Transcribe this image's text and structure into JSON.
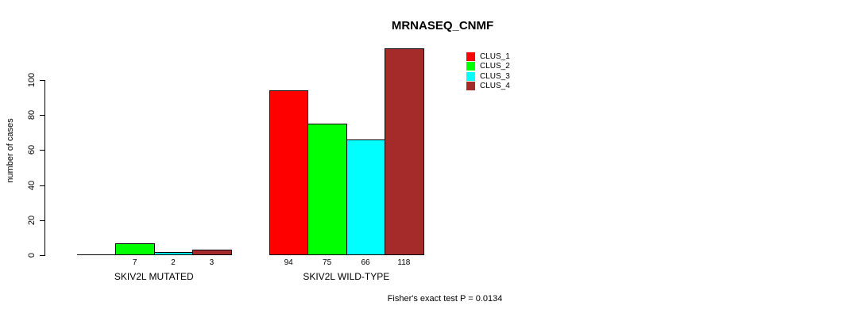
{
  "title": "MRNASEQ_CNMF",
  "footer_annotation": "Fisher's exact test P = 0.0134",
  "chart_data": {
    "type": "bar",
    "title": "MRNASEQ_CNMF",
    "xlabel": "",
    "ylabel": "number of cases",
    "ylim": [
      0,
      120
    ],
    "yticks": [
      0,
      20,
      40,
      60,
      80,
      100
    ],
    "ytick_labels": [
      "0",
      "20",
      "40",
      "60",
      "80",
      "100"
    ],
    "grid": false,
    "legend_position": "top-right",
    "annotation": "Fisher's exact test P = 0.0134",
    "categories": [
      "SKIV2L MUTATED",
      "SKIV2L WILD-TYPE"
    ],
    "series": [
      {
        "name": "CLUS_1",
        "color": "#ff0000",
        "values": [
          0,
          94
        ]
      },
      {
        "name": "CLUS_2",
        "color": "#00ff00",
        "values": [
          7,
          75
        ]
      },
      {
        "name": "CLUS_3",
        "color": "#00ffff",
        "values": [
          2,
          66
        ]
      },
      {
        "name": "CLUS_4",
        "color": "#a52a2a",
        "values": [
          3,
          118
        ]
      }
    ],
    "shown_value_labels": [
      [
        "",
        "7",
        "2",
        "3"
      ],
      [
        "94",
        "75",
        "66",
        "118"
      ]
    ]
  },
  "legend": {
    "items": [
      {
        "label": "CLUS_1",
        "color": "#ff0000"
      },
      {
        "label": "CLUS_2",
        "color": "#00ff00"
      },
      {
        "label": "CLUS_3",
        "color": "#00ffff"
      },
      {
        "label": "CLUS_4",
        "color": "#a52a2a"
      }
    ]
  }
}
